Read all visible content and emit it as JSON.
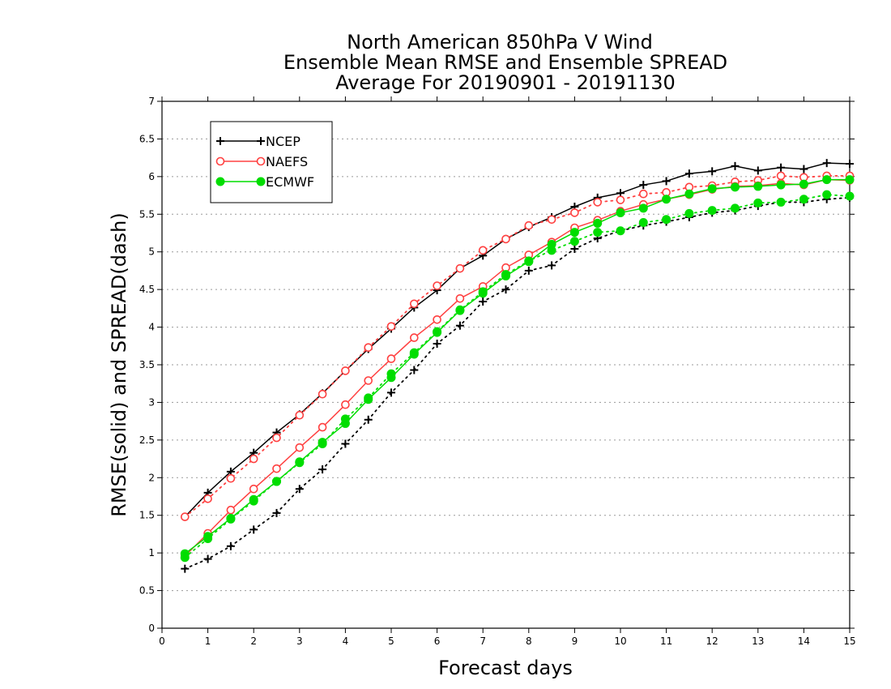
{
  "chart_data": {
    "type": "line",
    "title": "North American 850hPa V Wind",
    "subtitle": [
      "Ensemble Mean RMSE and Ensemble SPREAD",
      "Average For 20190901 - 20191130"
    ],
    "xlabel": "Forecast days",
    "ylabel": "RMSE(solid) and SPREAD(dash)",
    "xlim": [
      0,
      15
    ],
    "ylim": [
      0,
      7
    ],
    "xticks": [
      "0",
      "1",
      "2",
      "3",
      "4",
      "5",
      "6",
      "7",
      "8",
      "9",
      "10",
      "11",
      "12",
      "13",
      "14",
      "15"
    ],
    "yticks": [
      "0",
      "0.5",
      "1",
      "1.5",
      "2",
      "2.5",
      "3",
      "3.5",
      "4",
      "4.5",
      "5",
      "5.5",
      "6",
      "6.5",
      "7"
    ],
    "grid": "dotted horizontal",
    "legend_position": "top-left",
    "x": [
      0.5,
      1,
      1.5,
      2,
      2.5,
      3,
      3.5,
      4,
      4.5,
      5,
      5.5,
      6,
      6.5,
      7,
      7.5,
      8,
      8.5,
      9,
      9.5,
      10,
      10.5,
      11,
      11.5,
      12,
      12.5,
      13,
      13.5,
      14,
      14.5,
      15
    ],
    "series": [
      {
        "name": "NCEP",
        "color": "#000000",
        "marker": "plus",
        "rmse": [
          1.48,
          1.8,
          2.08,
          2.33,
          2.6,
          2.84,
          3.12,
          3.42,
          3.71,
          3.98,
          4.26,
          4.49,
          4.78,
          4.95,
          5.17,
          5.33,
          5.46,
          5.6,
          5.72,
          5.78,
          5.89,
          5.94,
          6.04,
          6.07,
          6.14,
          6.08,
          6.12,
          6.1,
          6.18,
          6.17
        ],
        "spread": [
          0.79,
          0.92,
          1.09,
          1.31,
          1.53,
          1.85,
          2.11,
          2.45,
          2.77,
          3.13,
          3.43,
          3.78,
          4.02,
          4.34,
          4.5,
          4.75,
          4.82,
          5.04,
          5.18,
          5.28,
          5.35,
          5.4,
          5.46,
          5.52,
          5.55,
          5.61,
          5.66,
          5.66,
          5.7,
          5.72
        ]
      },
      {
        "name": "NAEFS",
        "color": "#ff4040",
        "marker": "open-circle",
        "rmse": [
          0.96,
          1.26,
          1.57,
          1.85,
          2.12,
          2.4,
          2.67,
          2.97,
          3.29,
          3.58,
          3.86,
          4.1,
          4.38,
          4.54,
          4.79,
          4.96,
          5.13,
          5.32,
          5.42,
          5.54,
          5.63,
          5.7,
          5.76,
          5.83,
          5.87,
          5.88,
          5.91,
          5.89,
          5.96,
          5.95
        ],
        "spread": [
          1.48,
          1.72,
          1.99,
          2.25,
          2.53,
          2.83,
          3.11,
          3.42,
          3.73,
          4.01,
          4.31,
          4.55,
          4.78,
          5.02,
          5.17,
          5.35,
          5.43,
          5.52,
          5.66,
          5.69,
          5.77,
          5.79,
          5.86,
          5.88,
          5.93,
          5.95,
          6.01,
          5.99,
          6.01,
          6.01
        ]
      },
      {
        "name": "ECMWF",
        "color": "#00dd00",
        "marker": "filled-circle",
        "rmse": [
          0.99,
          1.22,
          1.46,
          1.71,
          1.95,
          2.21,
          2.47,
          2.72,
          3.04,
          3.33,
          3.64,
          3.93,
          4.22,
          4.45,
          4.68,
          4.87,
          5.1,
          5.26,
          5.38,
          5.52,
          5.58,
          5.7,
          5.77,
          5.84,
          5.86,
          5.87,
          5.89,
          5.9,
          5.96,
          5.96
        ],
        "spread": [
          0.94,
          1.19,
          1.45,
          1.69,
          1.95,
          2.2,
          2.45,
          2.78,
          3.06,
          3.38,
          3.66,
          3.94,
          4.23,
          4.47,
          4.7,
          4.88,
          5.02,
          5.14,
          5.26,
          5.28,
          5.39,
          5.43,
          5.51,
          5.55,
          5.58,
          5.65,
          5.66,
          5.7,
          5.76,
          5.74
        ]
      }
    ]
  }
}
